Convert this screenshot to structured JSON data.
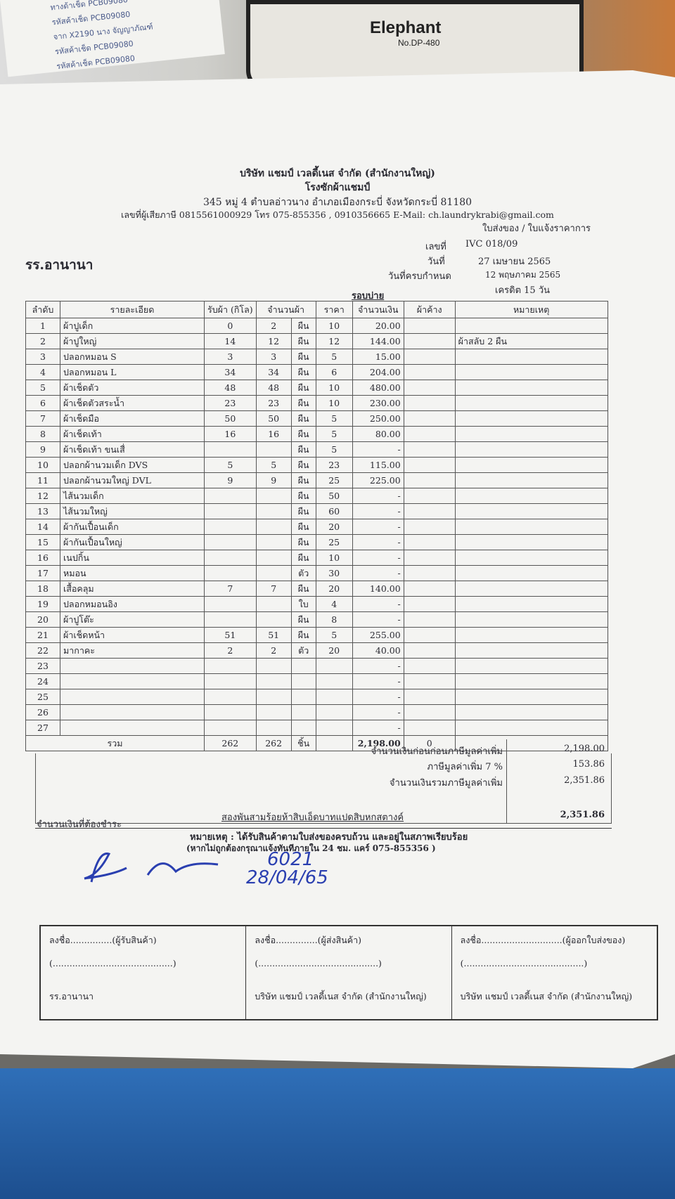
{
  "background": {
    "stapler_brand": "Elephant",
    "stapler_model": "No.DP-480",
    "note_lines": [
      "ทางด้าเช็ด PCB09080",
      "รหัสค้าเช็ด PCB09080",
      "จาก X2190 นาง จัญญาภัณฑ์",
      "รหัสค้าเช็ด PCB09080",
      "รหัสค้าเช็ด PCB09080"
    ]
  },
  "header": {
    "company": "บริษัท แชมป์ เวลดี้เนส จำกัด (สำนักงานใหญ่)",
    "subtitle": "โรงซักผ้าแชมป์",
    "address": "345 หมู่ 4 ตำบลอ่าวนาง อำเภอเมืองกระบี่ จังหวัดกระบี่ 81180",
    "contact": "เลขที่ผู้เสียภาษี 0815561000929 โทร 075-855356 , 0910356665 E-Mail: ch.laundrykrabi@gmail.com",
    "doc_type": "ใบส่งของ / ใบแจ้งราคาการ"
  },
  "customer": "รร.อานานา",
  "meta": {
    "no_label": "เลขที่",
    "no": "IVC 018/09",
    "date_label": "วันที่",
    "date": "27 เมษายน 2565",
    "due_label": "วันที่ครบกำหนด",
    "due": "12 พฤษภาคม 2565",
    "credit": "เครดิต 15 วัน",
    "period": "รอบบ่าย"
  },
  "columns": [
    "ลำดับ",
    "รายละเอียด",
    "รับผ้า (กิโล)",
    "จำนวนผ้า",
    "ราคา",
    "จำนวนเงิน",
    "ผ้าค้าง",
    "หมายเหตุ"
  ],
  "items": [
    [
      "1",
      "ผ้าปูเด็ก",
      "0",
      "2",
      "ผืน",
      "10",
      "20.00",
      "",
      ""
    ],
    [
      "2",
      "ผ้าปูใหญ่",
      "14",
      "12",
      "ผืน",
      "12",
      "144.00",
      "",
      "ผ้าสลับ 2 ผืน"
    ],
    [
      "3",
      "ปลอกหมอน S",
      "3",
      "3",
      "ผืน",
      "5",
      "15.00",
      "",
      ""
    ],
    [
      "4",
      "ปลอกหมอน L",
      "34",
      "34",
      "ผืน",
      "6",
      "204.00",
      "",
      ""
    ],
    [
      "5",
      "ผ้าเช็ดตัว",
      "48",
      "48",
      "ผืน",
      "10",
      "480.00",
      "",
      ""
    ],
    [
      "6",
      "ผ้าเช็ดตัวสระน้ำ",
      "23",
      "23",
      "ผืน",
      "10",
      "230.00",
      "",
      ""
    ],
    [
      "7",
      "ผ้าเช็ดมือ",
      "50",
      "50",
      "ผืน",
      "5",
      "250.00",
      "",
      ""
    ],
    [
      "8",
      "ผ้าเช็ดเท้า",
      "16",
      "16",
      "ผืน",
      "5",
      "80.00",
      "",
      ""
    ],
    [
      "9",
      "ผ้าเช็ดเท้า ขนเสื่",
      "",
      "",
      "ผืน",
      "5",
      "-",
      "",
      ""
    ],
    [
      "10",
      "ปลอกผ้านวมเด็ก DVS",
      "5",
      "5",
      "ผืน",
      "23",
      "115.00",
      "",
      ""
    ],
    [
      "11",
      "ปลอกผ้านวมใหญ่ DVL",
      "9",
      "9",
      "ผืน",
      "25",
      "225.00",
      "",
      ""
    ],
    [
      "12",
      "ไส้นวมเด็ก",
      "",
      "",
      "ผืน",
      "50",
      "-",
      "",
      ""
    ],
    [
      "13",
      "ไส้นวมใหญ่",
      "",
      "",
      "ผืน",
      "60",
      "-",
      "",
      ""
    ],
    [
      "14",
      "ผ้ากันเปื้อนเด็ก",
      "",
      "",
      "ผืน",
      "20",
      "-",
      "",
      ""
    ],
    [
      "15",
      "ผ้ากันเปื้อนใหญ่",
      "",
      "",
      "ผืน",
      "25",
      "-",
      "",
      ""
    ],
    [
      "16",
      "เนปกิ้น",
      "",
      "",
      "ผืน",
      "10",
      "-",
      "",
      ""
    ],
    [
      "17",
      "หมอน",
      "",
      "",
      "ตัว",
      "30",
      "-",
      "",
      ""
    ],
    [
      "18",
      "เสื้อคลุม",
      "7",
      "7",
      "ผืน",
      "20",
      "140.00",
      "",
      ""
    ],
    [
      "19",
      "ปลอกหมอนอิง",
      "",
      "",
      "ใบ",
      "4",
      "-",
      "",
      ""
    ],
    [
      "20",
      "ผ้าปูโต๊ะ",
      "",
      "",
      "ผืน",
      "8",
      "-",
      "",
      ""
    ],
    [
      "21",
      "ผ้าเช็ดหน้า",
      "51",
      "51",
      "ผืน",
      "5",
      "255.00",
      "",
      ""
    ],
    [
      "22",
      "มากาคะ",
      "2",
      "2",
      "ตัว",
      "20",
      "40.00",
      "",
      ""
    ],
    [
      "23",
      "",
      "",
      "",
      "",
      "",
      "-",
      "",
      ""
    ],
    [
      "24",
      "",
      "",
      "",
      "",
      "",
      "-",
      "",
      ""
    ],
    [
      "25",
      "",
      "",
      "",
      "",
      "",
      "-",
      "",
      ""
    ],
    [
      "26",
      "",
      "",
      "",
      "",
      "",
      "-",
      "",
      ""
    ],
    [
      "27",
      "",
      "",
      "",
      "",
      "",
      "-",
      "",
      ""
    ]
  ],
  "total": {
    "label": "รวม",
    "kg": "262",
    "qty": "262",
    "unit": "ชิ้น",
    "amount": "2,198.00",
    "pending": "0"
  },
  "summary": {
    "pre_vat_label": "จำนวนเงินก่อนก่อนภาษีมูลค่าเพิ่ม",
    "pre_vat": "2,198.00",
    "vat_label": "ภาษีมูลค่าเพิ่ม 7 %",
    "vat": "153.86",
    "grand_label": "จำนวนเงินรวมภาษีมูลค่าเพิ่ม",
    "grand": "2,351.86",
    "words": "สองพันสามร้อยห้าสิบเอ็ดบาทแปดสิบหกสตางค์",
    "due_label": "จำนวนเงินที่ต้องชำระ",
    "due": "2,351.86"
  },
  "remark": {
    "line1": "หมายเหตุ : ได้รับสินค้าตามใบส่งของครบถ้วน และอยู่ในสภาพเรียบร้อย",
    "line2": "(หากไม่ถูกต้องกรุณาแจ้งทันทีภายใน 24 ชม. แคร์ 075-855356 )"
  },
  "signatures": [
    {
      "sign": "ลงชื่อ...............(ผู้รับสินค้า)",
      "name": "(...........................................)",
      "org": "รร.อานานา"
    },
    {
      "sign": "ลงชื่อ...............(ผู้ส่งสินค้า)",
      "name": "(...........................................)",
      "org": "บริษัท แชมป์ เวลดี้เนส จำกัด (สำนักงานใหญ่)"
    },
    {
      "sign": "ลงชื่อ.............................(ผู้ออกใบส่งของ)",
      "name": "(...........................................)",
      "org": "บริษัท แชมป์ เวลดี้เนส จำกัด (สำนักงานใหญ่)"
    }
  ],
  "handwriting": {
    "code": "6021",
    "date": "28/04/65"
  }
}
